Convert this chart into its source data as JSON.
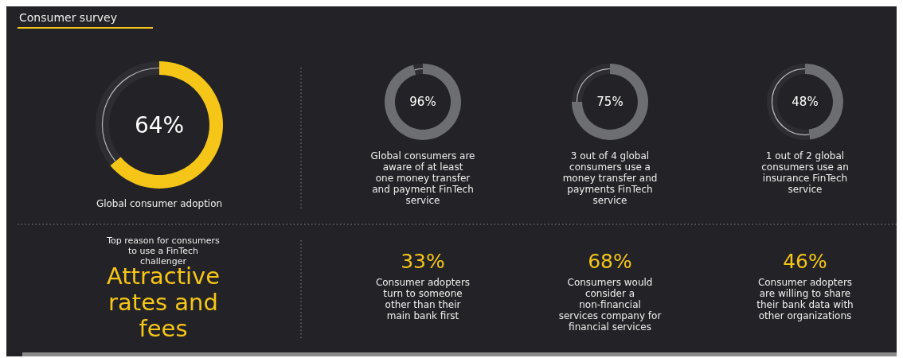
{
  "chart_data": [
    {
      "type": "other",
      "title": "Consumer survey"
    },
    {
      "type": "donut",
      "title": "Global consumer adoption",
      "categories": [
        null,
        null
      ],
      "values": [
        64,
        36
      ],
      "colors": [
        "#f5c518",
        "#2d2d32"
      ],
      "value_labels": [
        "64%",
        null
      ]
    },
    {
      "type": "donut",
      "title": "Global consumers are aware of at least one money transfer and payment FinTech service",
      "categories": [
        null,
        null
      ],
      "values": [
        96,
        4
      ],
      "colors": [
        "#6d6e71",
        "#2d2d32"
      ],
      "value_labels": [
        "96%",
        null
      ]
    },
    {
      "type": "donut",
      "title": "3 out of 4 global consumers use a money transfer and payments FinTech service",
      "categories": [
        null,
        null
      ],
      "values": [
        75,
        25
      ],
      "colors": [
        "#6d6e71",
        "#2d2d32"
      ],
      "value_labels": [
        "75%",
        null
      ]
    },
    {
      "type": "donut",
      "title": "1 out of 2 global consumers use an insurance FinTech service",
      "categories": [
        null,
        null
      ],
      "values": [
        48,
        52
      ],
      "colors": [
        "#6d6e71",
        "#2d2d32"
      ],
      "value_labels": [
        "48%",
        null
      ]
    },
    {
      "type": "other",
      "title": "Top reason for consumers to use a FinTech challenger",
      "subtitle": "Attractive rates and fees",
      "annotations": [
        "33%",
        "Consumer adopters turn to someone other than their main bank first",
        "68%",
        "Consumers would consider a non-financial services company for financial services",
        "46%",
        "Consumer adopters are willing to share their bank data with other organizations"
      ]
    }
  ]
}
